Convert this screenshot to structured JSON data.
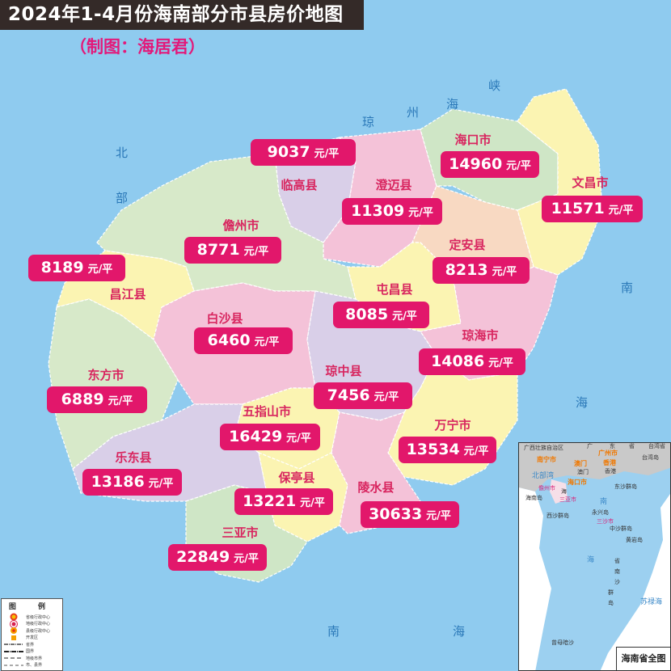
{
  "header": {
    "title": "2024年1-4月份海南部分市县房价地图",
    "subtitle": "（制图：海居君）"
  },
  "price_unit": "元/平",
  "colors": {
    "sea": "#8fcbef",
    "price_box": "#e2176b",
    "region_name": "#d8255f",
    "title_bar": "#342a28"
  },
  "regions": [
    {
      "name": "临高县",
      "price": "9037"
    },
    {
      "name": "澄迈县",
      "price": "11309"
    },
    {
      "name": "海口市",
      "price": "14960"
    },
    {
      "name": "文昌市",
      "price": "11571"
    },
    {
      "name": "儋州市",
      "price": "8771"
    },
    {
      "name": "定安县",
      "price": "8213"
    },
    {
      "name": "昌江县",
      "price": "8189"
    },
    {
      "name": "屯昌县",
      "price": "8085"
    },
    {
      "name": "白沙县",
      "price": "6460"
    },
    {
      "name": "琼海市",
      "price": "14086"
    },
    {
      "name": "东方市",
      "price": "6889"
    },
    {
      "name": "琼中县",
      "price": "7456"
    },
    {
      "name": "五指山市",
      "price": "16429"
    },
    {
      "name": "万宁市",
      "price": "13534"
    },
    {
      "name": "乐东县",
      "price": "13186"
    },
    {
      "name": "保亭县",
      "price": "13221"
    },
    {
      "name": "陵水县",
      "price": "30633"
    },
    {
      "name": "三亚市",
      "price": "22849"
    }
  ],
  "sea_labels": [
    "北",
    "部",
    "琼",
    "州",
    "海",
    "峡",
    "南",
    "海",
    "南",
    "海"
  ],
  "legend": {
    "title": "图 例",
    "items": [
      "省级行政中心",
      "地级行政中心",
      "县级行政中心",
      "开发区",
      "省界",
      "国界",
      "地级市界",
      "市、县界"
    ]
  },
  "inset": {
    "title": "海南省全图",
    "cities": [
      "南宁市",
      "广州市",
      "澳门",
      "香港",
      "海口市"
    ],
    "prefecture_cities": [
      "儋州市",
      "三亚市",
      "三沙市"
    ],
    "places": [
      "广西壮族自治区",
      "广",
      "东",
      "省",
      "台湾省",
      "台湾岛",
      "澳门",
      "香港",
      "北部湾",
      "海南岛",
      "海",
      "东沙群岛",
      "永兴岛",
      "西沙群岛",
      "中沙群岛",
      "黄岩岛",
      "南",
      "海",
      "省",
      "南",
      "沙",
      "群",
      "岛",
      "苏禄海",
      "曾母暗沙"
    ]
  }
}
